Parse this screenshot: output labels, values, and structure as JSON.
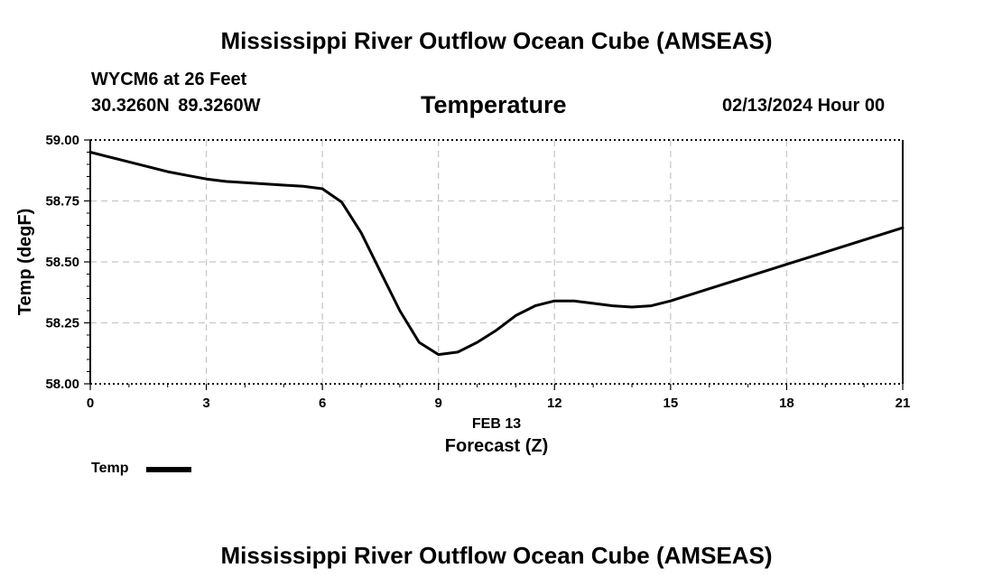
{
  "header": {
    "main_title": "Mississippi River Outflow Ocean Cube (AMSEAS)",
    "station": "WYCM6 at 26 Feet",
    "coords": "30.3260N  89.3260W",
    "variable": "Temperature",
    "datetime": "02/13/2024 Hour 00"
  },
  "legend": {
    "label": "Temp"
  },
  "footer": {
    "title": "Mississippi River Outflow Ocean Cube (AMSEAS)"
  },
  "colors": {
    "line": "#000000",
    "grid": "#c8c8c8",
    "axis": "#000000"
  },
  "chart_data": {
    "type": "line",
    "title": "Temperature",
    "xlabel": "Forecast (Z)",
    "xlabel_date": "FEB 13",
    "ylabel": "Temp (degF)",
    "xlim": [
      0,
      21
    ],
    "ylim": [
      58.0,
      59.0
    ],
    "x_ticks": [
      0,
      3,
      6,
      9,
      12,
      15,
      18,
      21
    ],
    "y_ticks": [
      "58.00",
      "58.25",
      "58.50",
      "58.75",
      "59.00"
    ],
    "grid": true,
    "series": [
      {
        "name": "Temp",
        "x": [
          0,
          0.5,
          1,
          1.5,
          2,
          2.5,
          3,
          3.5,
          4,
          4.5,
          5,
          5.5,
          6,
          6.5,
          7,
          7.5,
          8,
          8.5,
          9,
          9.5,
          10,
          10.5,
          11,
          11.5,
          12,
          12.5,
          13,
          13.5,
          14,
          14.5,
          15,
          16,
          17,
          18,
          19,
          20,
          21
        ],
        "values": [
          58.95,
          58.93,
          58.91,
          58.89,
          58.87,
          58.855,
          58.84,
          58.83,
          58.825,
          58.82,
          58.815,
          58.81,
          58.8,
          58.745,
          58.62,
          58.46,
          58.3,
          58.17,
          58.12,
          58.13,
          58.17,
          58.22,
          58.28,
          58.32,
          58.34,
          58.34,
          58.33,
          58.32,
          58.315,
          58.32,
          58.34,
          58.39,
          58.44,
          58.49,
          58.54,
          58.59,
          58.64
        ]
      }
    ]
  }
}
